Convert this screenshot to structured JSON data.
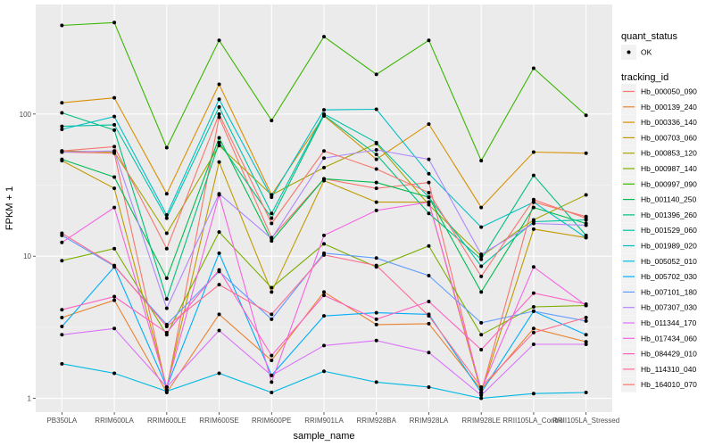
{
  "chart_data": {
    "type": "line",
    "title": "",
    "xlabel": "sample_name",
    "ylabel": "FPKM + 1",
    "y_scale": "log10",
    "ylim": [
      0.8,
      590
    ],
    "y_ticks": [
      1,
      10,
      100
    ],
    "y_tick_labels": [
      "1",
      "10",
      "100"
    ],
    "grid": true,
    "legend_placement": "right",
    "categories": [
      "PB350LA",
      "RRIM600LA",
      "RRIM600LE",
      "RRIM600SE",
      "RRIM600PE",
      "RRIM901LA",
      "RRIM928BA",
      "RRIM928LA",
      "RRIM928LE",
      "RRII105LA_Control",
      "RRII105LA_Stressed"
    ],
    "shape_legend": {
      "title": "quant_status",
      "entries": [
        {
          "label": "OK",
          "shape": "point"
        }
      ]
    },
    "color_legend_title": "tracking_id",
    "series": [
      {
        "name": "Hb_000050_090",
        "color": "#F8766D",
        "values": [
          54,
          53,
          1.15,
          95,
          13.5,
          35,
          30,
          33,
          1.1,
          24,
          19
        ]
      },
      {
        "name": "Hb_000139_240",
        "color": "#EA8331",
        "values": [
          3.7,
          4.9,
          1.1,
          3.9,
          1.85,
          5.6,
          3.3,
          3.35,
          1.15,
          3.1,
          2.5
        ]
      },
      {
        "name": "Hb_000336_140",
        "color": "#D89000",
        "values": [
          120,
          130,
          27.5,
          162,
          27,
          97,
          48,
          85,
          22,
          54,
          53
        ]
      },
      {
        "name": "Hb_000703_060",
        "color": "#C09B00",
        "values": [
          47,
          30,
          1.2,
          46,
          5.6,
          34,
          24,
          24,
          1.1,
          15.5,
          13.5
        ]
      },
      {
        "name": "Hb_000853_120",
        "color": "#A3A500",
        "values": [
          55,
          54,
          14.5,
          60,
          27,
          42,
          62,
          23,
          10,
          18,
          27
        ]
      },
      {
        "name": "Hb_000987_140",
        "color": "#7CAE00",
        "values": [
          9.3,
          11.3,
          2.8,
          14.8,
          6.0,
          12.2,
          8.4,
          11.8,
          2.8,
          4.4,
          4.5
        ]
      },
      {
        "name": "Hb_000997_090",
        "color": "#39B600",
        "values": [
          420,
          440,
          58,
          330,
          90,
          350,
          190,
          330,
          47,
          210,
          98
        ]
      },
      {
        "name": "Hb_001140_250",
        "color": "#00BB4E",
        "values": [
          48,
          36,
          7.0,
          68,
          12.8,
          35,
          33,
          26,
          5.6,
          22,
          17
        ]
      },
      {
        "name": "Hb_001396_260",
        "color": "#00BF7D",
        "values": [
          102,
          77,
          5.0,
          63,
          18.5,
          98,
          52,
          20,
          9.5,
          37,
          14
        ]
      },
      {
        "name": "Hb_001529_060",
        "color": "#00C1A3",
        "values": [
          82,
          84,
          18.5,
          112,
          20,
          100,
          63,
          26,
          8.5,
          17.5,
          18
        ]
      },
      {
        "name": "Hb_001989_020",
        "color": "#00BFC4",
        "values": [
          78,
          96,
          19.5,
          127,
          26,
          107,
          108,
          38,
          16,
          24,
          13.5
        ]
      },
      {
        "name": "Hb_005052_010",
        "color": "#00B9E3",
        "values": [
          1.75,
          1.5,
          1.12,
          1.5,
          1.1,
          1.55,
          1.3,
          1.2,
          1.0,
          1.08,
          1.1
        ]
      },
      {
        "name": "Hb_005702_030",
        "color": "#00ADFA",
        "values": [
          3.2,
          8.4,
          1.2,
          10.5,
          1.45,
          3.8,
          4.0,
          3.9,
          1.1,
          4.1,
          2.8
        ]
      },
      {
        "name": "Hb_007101_180",
        "color": "#619CFF",
        "values": [
          14,
          8.5,
          3.3,
          7.8,
          3.6,
          10.5,
          9.7,
          7.3,
          3.4,
          4.1,
          3.5
        ]
      },
      {
        "name": "Hb_007307_030",
        "color": "#AE87FF",
        "values": [
          54,
          55,
          4.3,
          27.5,
          13.3,
          49,
          56,
          48,
          10.3,
          17,
          16.5
        ]
      },
      {
        "name": "Hb_011344_170",
        "color": "#DB72FB",
        "values": [
          2.8,
          3.1,
          1.2,
          3.0,
          1.45,
          2.35,
          2.55,
          2.1,
          1.05,
          2.4,
          2.4
        ]
      },
      {
        "name": "Hb_017434_060",
        "color": "#F564E3",
        "values": [
          12.5,
          22,
          1.2,
          27,
          1.3,
          14,
          21,
          24,
          1.15,
          8.4,
          4.5
        ]
      },
      {
        "name": "Hb_084429_010",
        "color": "#FF61C3",
        "values": [
          4.2,
          5.2,
          2.9,
          8.0,
          2.0,
          5.3,
          3.6,
          4.8,
          2.2,
          5.5,
          4.6
        ]
      },
      {
        "name": "Hb_114310_040",
        "color": "#FF6C91",
        "values": [
          14.5,
          8.6,
          3.2,
          6.3,
          3.9,
          10.2,
          8.6,
          3.8,
          1.2,
          2.9,
          3.7
        ]
      },
      {
        "name": "Hb_164010_070",
        "color": "#F8766D",
        "values": [
          55,
          59,
          11.3,
          100,
          17,
          55,
          41,
          28,
          7.2,
          25,
          18.5
        ]
      }
    ]
  }
}
